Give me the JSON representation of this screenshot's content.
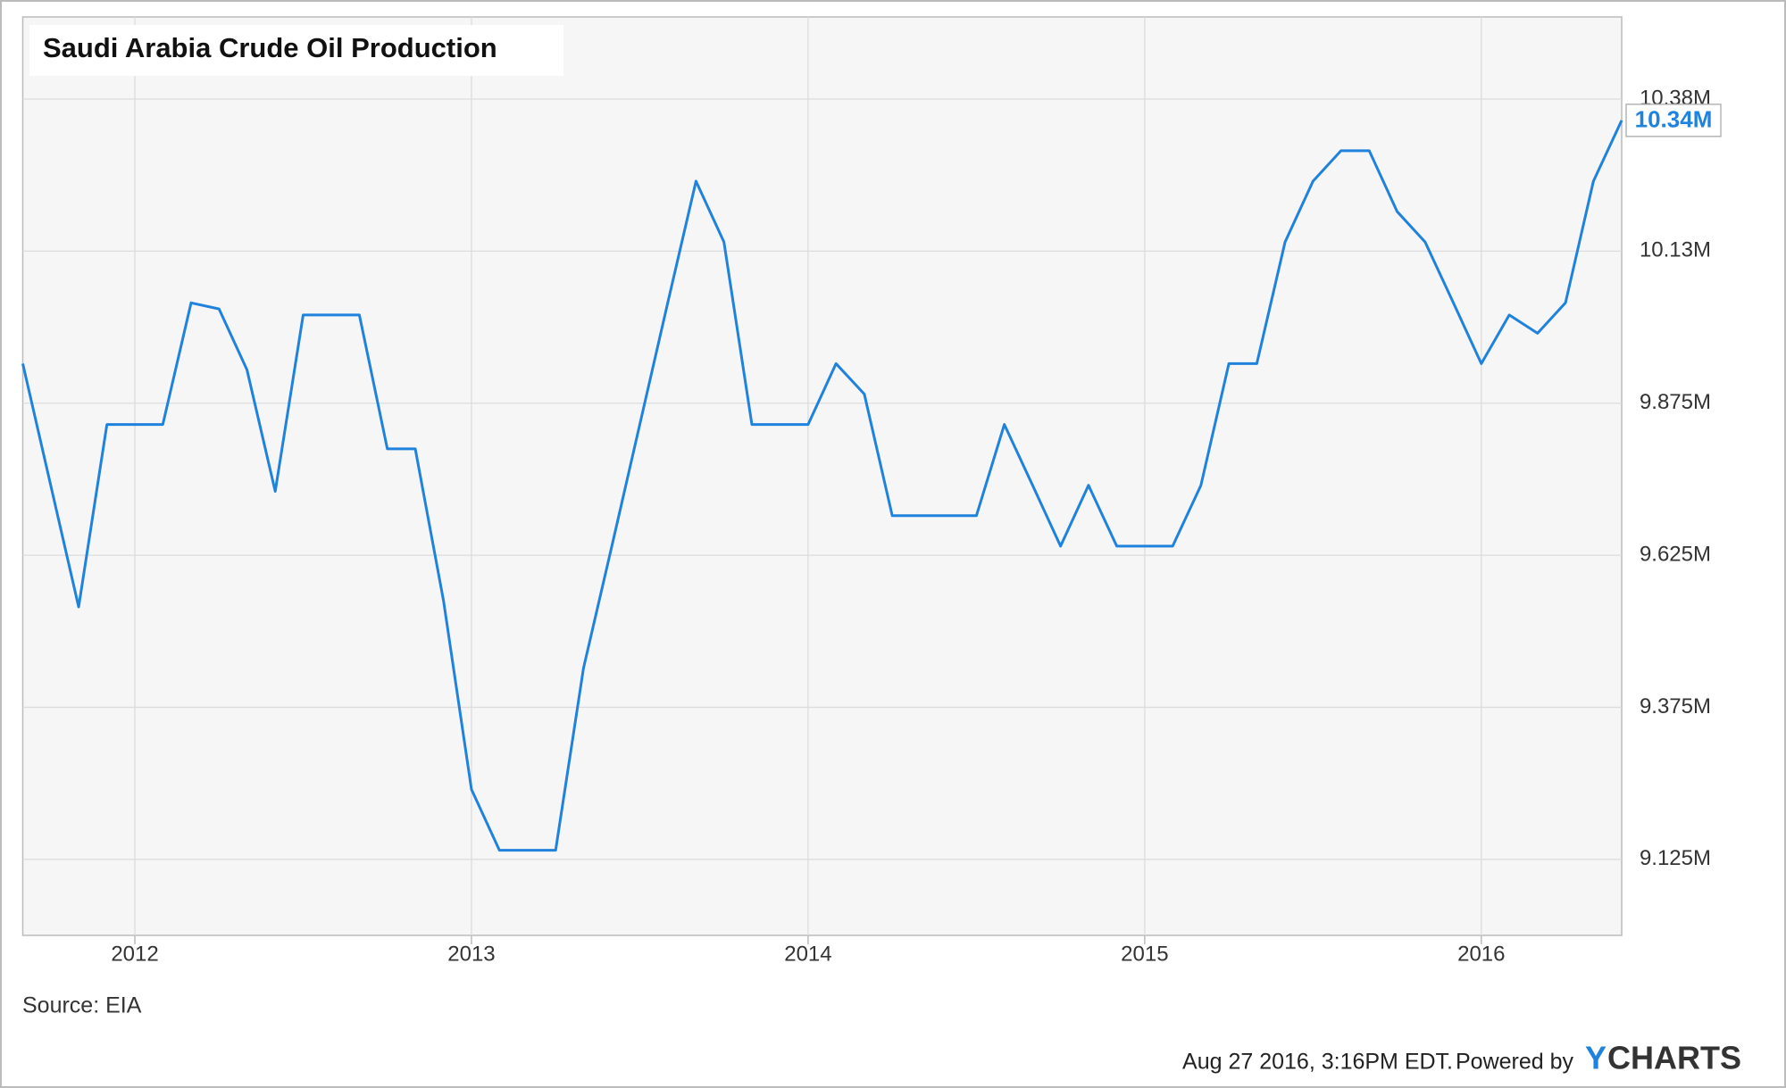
{
  "chart_data": {
    "type": "line",
    "title": "Saudi Arabia Crude Oil Production",
    "source": "Source: EIA",
    "timestamp": "Aug 27 2016, 3:16PM EDT.",
    "powered_by": "Powered by",
    "logo_first": "Y",
    "logo_rest": "CHARTS",
    "x": [
      2011.667,
      2011.75,
      2011.833,
      2011.917,
      2012,
      2012.083,
      2012.167,
      2012.25,
      2012.333,
      2012.417,
      2012.5,
      2012.583,
      2012.667,
      2012.75,
      2012.833,
      2012.917,
      2013,
      2013.083,
      2013.167,
      2013.25,
      2013.333,
      2013.417,
      2013.5,
      2013.583,
      2013.667,
      2013.75,
      2013.833,
      2013.917,
      2014,
      2014.083,
      2014.167,
      2014.25,
      2014.333,
      2014.417,
      2014.5,
      2014.583,
      2014.667,
      2014.75,
      2014.833,
      2014.917,
      2015,
      2015.083,
      2015.167,
      2015.25,
      2015.333,
      2015.417,
      2015.5,
      2015.583,
      2015.667,
      2015.75,
      2015.833,
      2015.917,
      2016,
      2016.083,
      2016.167,
      2016.25,
      2016.333,
      2016.417
    ],
    "series": [
      {
        "name": "Saudi Arabia Crude Oil Production",
        "color": "#1f82dc",
        "values": [
          9940000,
          9740000,
          9540000,
          9840000,
          9840000,
          9840000,
          10040000,
          10030000,
          9930000,
          9730000,
          10020000,
          10020000,
          10020000,
          9800000,
          9800000,
          9550000,
          9240000,
          9140000,
          9140000,
          9140000,
          9440000,
          9640000,
          9840000,
          10040000,
          10240000,
          10140000,
          9840000,
          9840000,
          9840000,
          9940000,
          9890000,
          9690000,
          9690000,
          9690000,
          9690000,
          9840000,
          9740000,
          9640000,
          9740000,
          9640000,
          9640000,
          9640000,
          9740000,
          9940000,
          9940000,
          10140000,
          10240000,
          10290000,
          10290000,
          10190000,
          10140000,
          10040000,
          9940000,
          10020000,
          9990000,
          10040000,
          10240000,
          10340000
        ],
        "value_labels": [
          null,
          null,
          null,
          null,
          null,
          null,
          null,
          null,
          null,
          null,
          null,
          null,
          null,
          null,
          null,
          null,
          null,
          null,
          null,
          null,
          null,
          null,
          null,
          null,
          null,
          null,
          null,
          null,
          null,
          null,
          null,
          null,
          null,
          null,
          null,
          null,
          null,
          null,
          null,
          null,
          null,
          null,
          null,
          null,
          null,
          null,
          null,
          null,
          null,
          null,
          null,
          null,
          null,
          null,
          null,
          null,
          null,
          "10.34M"
        ]
      }
    ],
    "xlim": [
      2011.667,
      2016.417
    ],
    "xticks": [
      2012,
      2013,
      2014,
      2015,
      2016
    ],
    "ylim": [
      9000000,
      10510000
    ],
    "yticks": [
      {
        "value": 9125000,
        "label": "9.125M"
      },
      {
        "value": 9375000,
        "label": "9.375M"
      },
      {
        "value": 9625000,
        "label": "9.625M"
      },
      {
        "value": 9875000,
        "label": "9.875M"
      },
      {
        "value": 10125000,
        "label": "10.13M"
      },
      {
        "value": 10375000,
        "label": "10.38M"
      }
    ],
    "grid": true
  }
}
